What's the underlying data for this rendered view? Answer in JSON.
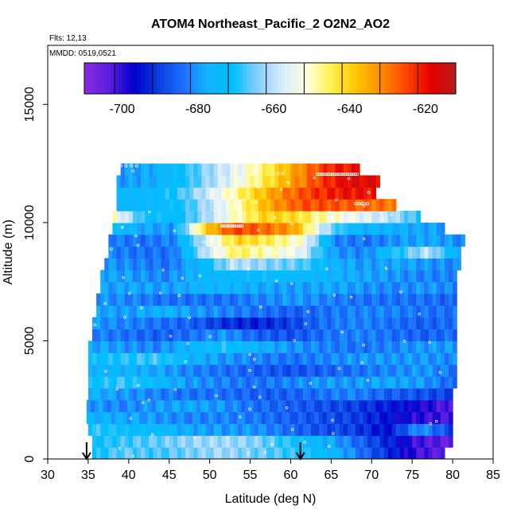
{
  "chart_data": {
    "type": "heatmap",
    "title": "ATOM4 Northeast_Pacific_2 O2N2_AO2",
    "annotations": [
      "Flts: 12,13",
      "MMDD: 0519,0521"
    ],
    "xlabel": "Latitude (deg N)",
    "ylabel": "Altitude (m)",
    "xlim": [
      30,
      85
    ],
    "ylim": [
      0,
      17500
    ],
    "x_ticks": [
      30,
      35,
      40,
      45,
      50,
      55,
      60,
      65,
      70,
      75,
      80,
      85
    ],
    "y_ticks": [
      0,
      5000,
      10000,
      15000
    ],
    "grid": false,
    "colorbar": {
      "placement": "top-inside",
      "range": [
        -710,
        -612
      ],
      "ticks": [
        -700,
        -680,
        -660,
        -640,
        -620
      ],
      "colors": [
        "#8a2be2",
        "#5a1ee0",
        "#0000cd",
        "#0a3fe0",
        "#1e6fff",
        "#13b5ff",
        "#00bfff",
        "#87cefa",
        "#d7ecff",
        "#ffffe0",
        "#fff04a",
        "#ffc400",
        "#ff8c00",
        "#ff4500",
        "#e60000",
        "#b71c1c"
      ]
    },
    "marker_latitudes": [
      34.8,
      61.2
    ],
    "level_step_m": 500,
    "levels": [
      {
        "alt": 250,
        "lat": [
          35.5,
          79.0
        ],
        "v": [
          -671,
          -666,
          -668,
          -665,
          -662,
          -665,
          -668,
          -672,
          -680,
          -690,
          -700,
          -705
        ]
      },
      {
        "alt": 750,
        "lat": [
          35.5,
          80.0
        ],
        "v": [
          -672,
          -668,
          -666,
          -663,
          -662,
          -664,
          -670,
          -676,
          -684,
          -693,
          -702,
          -705
        ]
      },
      {
        "alt": 1250,
        "lat": [
          35.0,
          80.0
        ],
        "v": [
          -668,
          -672,
          -674,
          -678,
          -680,
          -680,
          -684,
          -688,
          -690,
          -696,
          -680,
          -690
        ]
      },
      {
        "alt": 1750,
        "lat": [
          34.8,
          80.0
        ],
        "v": [
          -676,
          -678,
          -680,
          -682,
          -682,
          -683,
          -686,
          -688,
          -690,
          -695,
          -700,
          -702
        ]
      },
      {
        "alt": 2250,
        "lat": [
          34.8,
          80.0
        ],
        "v": [
          -680,
          -682,
          -680,
          -678,
          -680,
          -684,
          -686,
          -688,
          -690,
          -694,
          -698,
          -704
        ]
      },
      {
        "alt": 2750,
        "lat": [
          35.0,
          80.0
        ],
        "v": [
          -676,
          -680,
          -682,
          -684,
          -684,
          -686,
          -686,
          -684,
          -682,
          -686,
          -688,
          -690
        ]
      },
      {
        "alt": 3250,
        "lat": [
          35.0,
          80.5
        ],
        "v": [
          -672,
          -668,
          -674,
          -680,
          -682,
          -684,
          -682,
          -680,
          -680,
          -678,
          -680,
          -686
        ]
      },
      {
        "alt": 3750,
        "lat": [
          35.0,
          80.5
        ],
        "v": [
          -676,
          -676,
          -678,
          -682,
          -684,
          -686,
          -688,
          -686,
          -684,
          -682,
          -680,
          -684
        ]
      },
      {
        "alt": 4250,
        "lat": [
          35.0,
          80.5
        ],
        "v": [
          -672,
          -670,
          -668,
          -676,
          -680,
          -682,
          -684,
          -682,
          -680,
          -680,
          -680,
          -682
        ]
      },
      {
        "alt": 4750,
        "lat": [
          35.0,
          80.5
        ],
        "v": [
          -678,
          -680,
          -682,
          -676,
          -670,
          -676,
          -680,
          -682,
          -684,
          -682,
          -680,
          -680
        ]
      },
      {
        "alt": 5250,
        "lat": [
          35.5,
          80.5
        ],
        "v": [
          -682,
          -684,
          -686,
          -684,
          -680,
          -686,
          -688,
          -684,
          -682,
          -684,
          -686,
          -684
        ]
      },
      {
        "alt": 5750,
        "lat": [
          35.5,
          80.5
        ],
        "v": [
          -680,
          -682,
          -684,
          -686,
          -692,
          -694,
          -690,
          -684,
          -682,
          -684,
          -686,
          -684
        ]
      },
      {
        "alt": 6250,
        "lat": [
          36.0,
          80.5
        ],
        "v": [
          -678,
          -680,
          -676,
          -680,
          -682,
          -684,
          -686,
          -684,
          -682,
          -682,
          -684,
          -684
        ]
      },
      {
        "alt": 6750,
        "lat": [
          36.0,
          80.5
        ],
        "v": [
          -680,
          -682,
          -684,
          -684,
          -684,
          -682,
          -680,
          -682,
          -684,
          -684,
          -684,
          -686
        ]
      },
      {
        "alt": 7250,
        "lat": [
          36.5,
          80.5
        ],
        "v": [
          -680,
          -678,
          -680,
          -676,
          -676,
          -678,
          -680,
          -678,
          -680,
          -682,
          -680,
          -682
        ]
      },
      {
        "alt": 7750,
        "lat": [
          36.5,
          80.5
        ],
        "v": [
          -678,
          -680,
          -682,
          -676,
          -674,
          -672,
          -674,
          -676,
          -678,
          -680,
          -682,
          -682
        ]
      },
      {
        "alt": 8250,
        "lat": [
          37.0,
          81.0
        ],
        "v": [
          -680,
          -682,
          -684,
          -674,
          -660,
          -664,
          -666,
          -676,
          -680,
          -678,
          -680,
          -682
        ]
      },
      {
        "alt": 8750,
        "lat": [
          37.5,
          81.0
        ],
        "v": [
          -682,
          -684,
          -684,
          -660,
          -645,
          -650,
          -655,
          -680,
          -682,
          -670,
          -660,
          -680
        ]
      },
      {
        "alt": 9250,
        "lat": [
          37.5,
          81.5
        ],
        "v": [
          -682,
          -684,
          -682,
          -658,
          -640,
          -645,
          -652,
          -682,
          -684,
          -680,
          -678,
          -682
        ]
      },
      {
        "alt": 9750,
        "lat": [
          38.0,
          79.0
        ],
        "v": [
          -672,
          -678,
          -680,
          -642,
          -624,
          -628,
          -634,
          -660,
          -676,
          -676,
          -678,
          -680
        ]
      },
      {
        "alt": 10250,
        "lat": [
          38.0,
          76.0
        ],
        "v": [
          -650,
          -670,
          -674,
          -662,
          -650,
          -640,
          -642,
          -650,
          -655,
          -660,
          -670
        ]
      },
      {
        "alt": 10750,
        "lat": [
          38.5,
          73.0
        ],
        "v": [
          -675,
          -674,
          -672,
          -660,
          -648,
          -634,
          -626,
          -626,
          -628,
          -630
        ]
      },
      {
        "alt": 11250,
        "lat": [
          38.5,
          70.5
        ],
        "v": [
          -676,
          -674,
          -668,
          -656,
          -644,
          -632,
          -624,
          -620,
          -620
        ]
      },
      {
        "alt": 11750,
        "lat": [
          38.5,
          71.0
        ],
        "v": [
          -680,
          -678,
          -672,
          -660,
          -650,
          -638,
          -626,
          -618,
          -618
        ]
      },
      {
        "alt": 12250,
        "lat": [
          39.0,
          68.5
        ],
        "v": [
          -680,
          -678,
          -672,
          -662,
          -654,
          -644,
          -632,
          -622,
          -620
        ]
      }
    ],
    "flight_tracks": [
      {
        "lat_range": [
          39.0,
          41.0
        ],
        "alt": 12400,
        "n": 4
      },
      {
        "lat_range": [
          63.3,
          68.2
        ],
        "alt": 12050,
        "n": 22
      },
      {
        "lat_range": [
          51.5,
          54.0
        ],
        "alt": 9850,
        "n": 12
      },
      {
        "lat_range": [
          53.0,
          57.5
        ],
        "alt": 9000,
        "n": 10
      },
      {
        "lat_range": [
          68.0,
          69.5
        ],
        "alt": 10800,
        "n": 5
      }
    ]
  }
}
